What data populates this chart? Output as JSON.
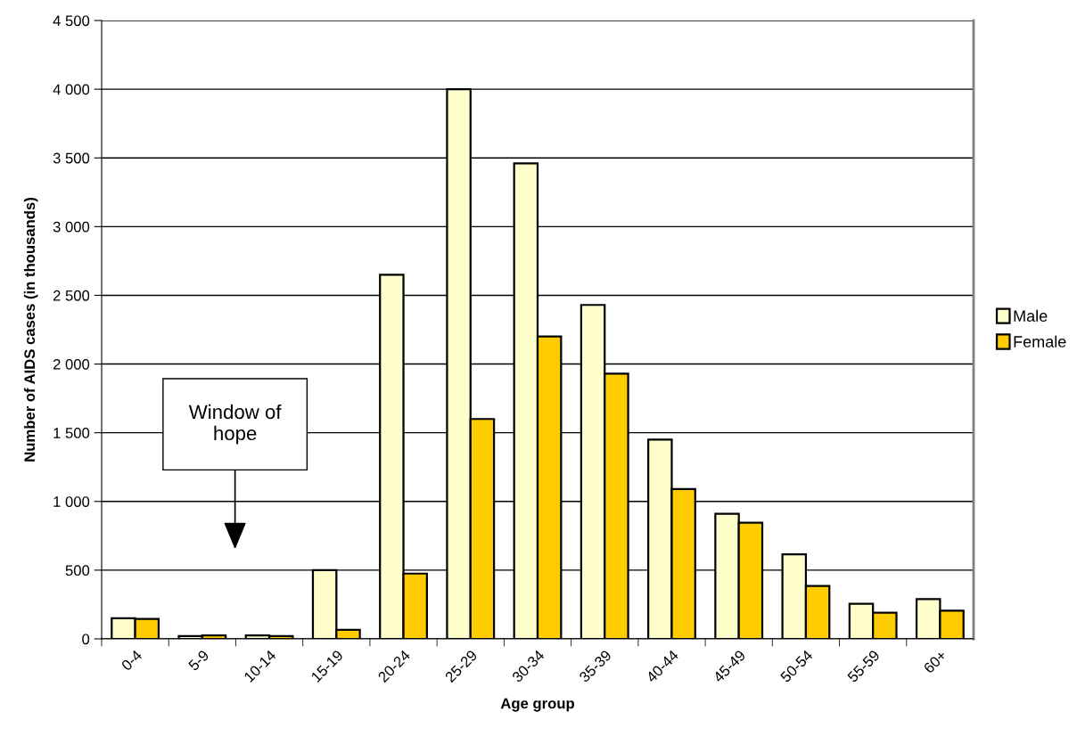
{
  "chart_data": {
    "type": "bar",
    "xlabel": "Age group",
    "ylabel": "Number of AIDS cases (in thousands)",
    "categories": [
      "0-4",
      "5-9",
      "10-14",
      "15-19",
      "20-24",
      "25-29",
      "30-34",
      "35-39",
      "40-44",
      "45-49",
      "50-54",
      "55-59",
      "60+"
    ],
    "series": [
      {
        "name": "Male",
        "color": "#ffffcc",
        "values": [
          150,
          20,
          25,
          500,
          2650,
          4000,
          3460,
          2430,
          1450,
          910,
          615,
          255,
          290
        ]
      },
      {
        "name": "Female",
        "color": "#ffcc00",
        "values": [
          145,
          25,
          20,
          65,
          475,
          1600,
          2200,
          1930,
          1090,
          845,
          385,
          190,
          205
        ]
      }
    ],
    "ylim": [
      0,
      4500
    ],
    "yticks": [
      0,
      500,
      {
        "value": 1000,
        "label": "1 000"
      },
      {
        "value": 1500,
        "label": "1 500"
      },
      {
        "value": 2000,
        "label": "2 000"
      },
      {
        "value": 2500,
        "label": "2 500"
      },
      {
        "value": 3000,
        "label": "3 000"
      },
      {
        "value": 3500,
        "label": "3 500"
      },
      {
        "value": 4000,
        "label": "4 000"
      },
      {
        "value": 4500,
        "label": "4 500"
      }
    ],
    "grid": "y",
    "legend": "right",
    "annotations": [
      "Window of\nhope"
    ]
  }
}
